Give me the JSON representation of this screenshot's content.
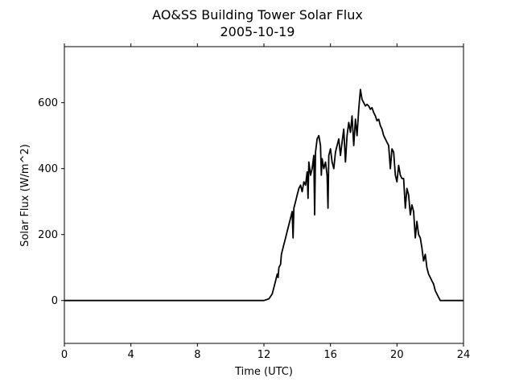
{
  "chart_data": {
    "type": "line",
    "title": "AO&SS Building Tower Solar Flux",
    "subtitle": "2005-10-19",
    "xlabel": "Time (UTC)",
    "ylabel": "Solar Flux (W/m^2)",
    "xlim": [
      0,
      24
    ],
    "ylim": [
      -130,
      770
    ],
    "xticks": [
      0,
      4,
      8,
      12,
      16,
      20,
      24
    ],
    "yticks": [
      0,
      200,
      400,
      600
    ],
    "grid": false,
    "legend": "none",
    "colors": {
      "line": "#000000",
      "axes": "#000000",
      "background": "#ffffff"
    },
    "series": [
      {
        "x": [
          0,
          4,
          8,
          12,
          12.3,
          12.5,
          12.6,
          12.7,
          12.8,
          12.85,
          12.9,
          13.0,
          13.05,
          13.1,
          13.2,
          13.3,
          13.4,
          13.5,
          13.6,
          13.7,
          13.75,
          13.8,
          13.9,
          14.0,
          14.1,
          14.2,
          14.3,
          14.4,
          14.5,
          14.6,
          14.65,
          14.7,
          14.8,
          14.9,
          15.0,
          15.05,
          15.1,
          15.2,
          15.3,
          15.4,
          15.45,
          15.5,
          15.6,
          15.7,
          15.8,
          15.85,
          15.9,
          16.0,
          16.1,
          16.2,
          16.3,
          16.4,
          16.5,
          16.6,
          16.7,
          16.8,
          16.9,
          17.0,
          17.1,
          17.2,
          17.3,
          17.4,
          17.5,
          17.6,
          17.7,
          17.8,
          17.9,
          18.0,
          18.1,
          18.2,
          18.3,
          18.4,
          18.5,
          18.6,
          18.7,
          18.8,
          18.9,
          19.0,
          19.1,
          19.2,
          19.3,
          19.4,
          19.5,
          19.6,
          19.7,
          19.8,
          19.9,
          20.0,
          20.1,
          20.2,
          20.3,
          20.4,
          20.5,
          20.6,
          20.7,
          20.8,
          20.9,
          21.0,
          21.1,
          21.2,
          21.3,
          21.4,
          21.5,
          21.6,
          21.7,
          21.8,
          21.9,
          22.0,
          22.1,
          22.2,
          22.3,
          22.4,
          22.5,
          22.6,
          22.7,
          22.8,
          23.0,
          23.2,
          23.4,
          23.7,
          24
        ],
        "y": [
          0,
          0,
          0,
          0,
          5,
          20,
          40,
          60,
          80,
          70,
          100,
          110,
          140,
          150,
          170,
          190,
          210,
          230,
          250,
          270,
          190,
          280,
          300,
          320,
          340,
          350,
          330,
          360,
          350,
          390,
          310,
          420,
          380,
          400,
          440,
          260,
          450,
          490,
          500,
          470,
          380,
          430,
          400,
          420,
          380,
          280,
          440,
          460,
          420,
          400,
          450,
          470,
          490,
          440,
          480,
          520,
          420,
          500,
          540,
          510,
          560,
          470,
          550,
          500,
          580,
          640,
          610,
          600,
          590,
          595,
          590,
          580,
          585,
          570,
          560,
          545,
          550,
          530,
          520,
          500,
          490,
          480,
          470,
          400,
          460,
          450,
          380,
          360,
          410,
          380,
          370,
          370,
          280,
          340,
          320,
          260,
          290,
          270,
          190,
          240,
          200,
          190,
          160,
          120,
          140,
          100,
          80,
          70,
          60,
          50,
          30,
          20,
          10,
          0,
          0,
          0,
          0,
          0,
          0,
          0,
          0
        ]
      }
    ]
  }
}
